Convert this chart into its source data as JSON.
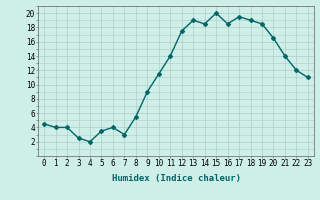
{
  "x": [
    0,
    1,
    2,
    3,
    4,
    5,
    6,
    7,
    8,
    9,
    10,
    11,
    12,
    13,
    14,
    15,
    16,
    17,
    18,
    19,
    20,
    21,
    22,
    23
  ],
  "y": [
    4.5,
    4.0,
    4.0,
    2.5,
    2.0,
    3.5,
    4.0,
    3.0,
    5.5,
    9.0,
    11.5,
    14.0,
    17.5,
    19.0,
    18.5,
    20.0,
    18.5,
    19.5,
    19.0,
    18.5,
    16.5,
    14.0,
    12.0,
    11.0
  ],
  "line_color": "#006666",
  "marker": "D",
  "marker_size": 2.0,
  "bg_color": "#ceeee8",
  "grid_color": "#b0ccc8",
  "xlabel": "Humidex (Indice chaleur)",
  "ylim": [
    0,
    21
  ],
  "xlim": [
    -0.5,
    23.5
  ],
  "yticks": [
    2,
    4,
    6,
    8,
    10,
    12,
    14,
    16,
    18,
    20
  ],
  "xticks": [
    0,
    1,
    2,
    3,
    4,
    5,
    6,
    7,
    8,
    9,
    10,
    11,
    12,
    13,
    14,
    15,
    16,
    17,
    18,
    19,
    20,
    21,
    22,
    23
  ],
  "axis_fontsize": 5.5,
  "label_fontsize": 6.5,
  "line_width": 1.0
}
